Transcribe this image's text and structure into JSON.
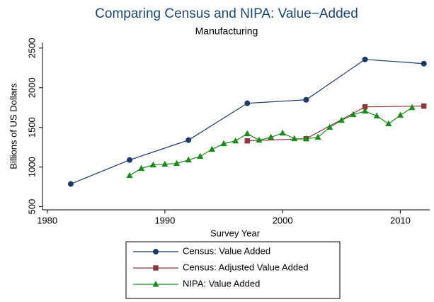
{
  "chart_data": {
    "type": "line",
    "title": "Comparing Census and NIPA: Value−Added",
    "subtitle": "Manufacturing",
    "x_label": "Survey Year",
    "y_label": "Billions of US Dollars",
    "xlim": [
      1979.6,
      2012.5
    ],
    "xticks": [
      1980,
      1990,
      2000,
      2010
    ],
    "ylim": [
      460,
      2570
    ],
    "yticks": [
      500,
      1000,
      1500,
      2000,
      2500
    ],
    "series": [
      {
        "name": "Census: Value Added",
        "color": "#1a3a6a",
        "marker": "circle",
        "x": [
          1982,
          1987,
          1992,
          1997,
          2002,
          2007,
          2012
        ],
        "values": [
          786,
          1089,
          1339,
          1804,
          1848,
          2357,
          2304
        ]
      },
      {
        "name": "Census: Adjusted Value Added",
        "color": "#90353b",
        "marker": "square",
        "x": [
          1997,
          2002,
          2007,
          2012
        ],
        "values": [
          1330,
          1357,
          1759,
          1768
        ]
      },
      {
        "name": "NIPA: Value Added",
        "color": "#1a8a1a",
        "marker": "triangle",
        "x": [
          1987,
          1988,
          1989,
          1990,
          1991,
          1992,
          1993,
          1994,
          1995,
          1996,
          1997,
          1998,
          1999,
          2000,
          2001,
          2002,
          2003,
          2004,
          2005,
          2006,
          2007,
          2008,
          2009,
          2010,
          2011
        ],
        "values": [
          893,
          982,
          1027,
          1036,
          1045,
          1089,
          1134,
          1223,
          1295,
          1330,
          1420,
          1339,
          1375,
          1429,
          1357,
          1357,
          1375,
          1500,
          1589,
          1661,
          1705,
          1643,
          1545,
          1652,
          1750
        ]
      }
    ]
  }
}
